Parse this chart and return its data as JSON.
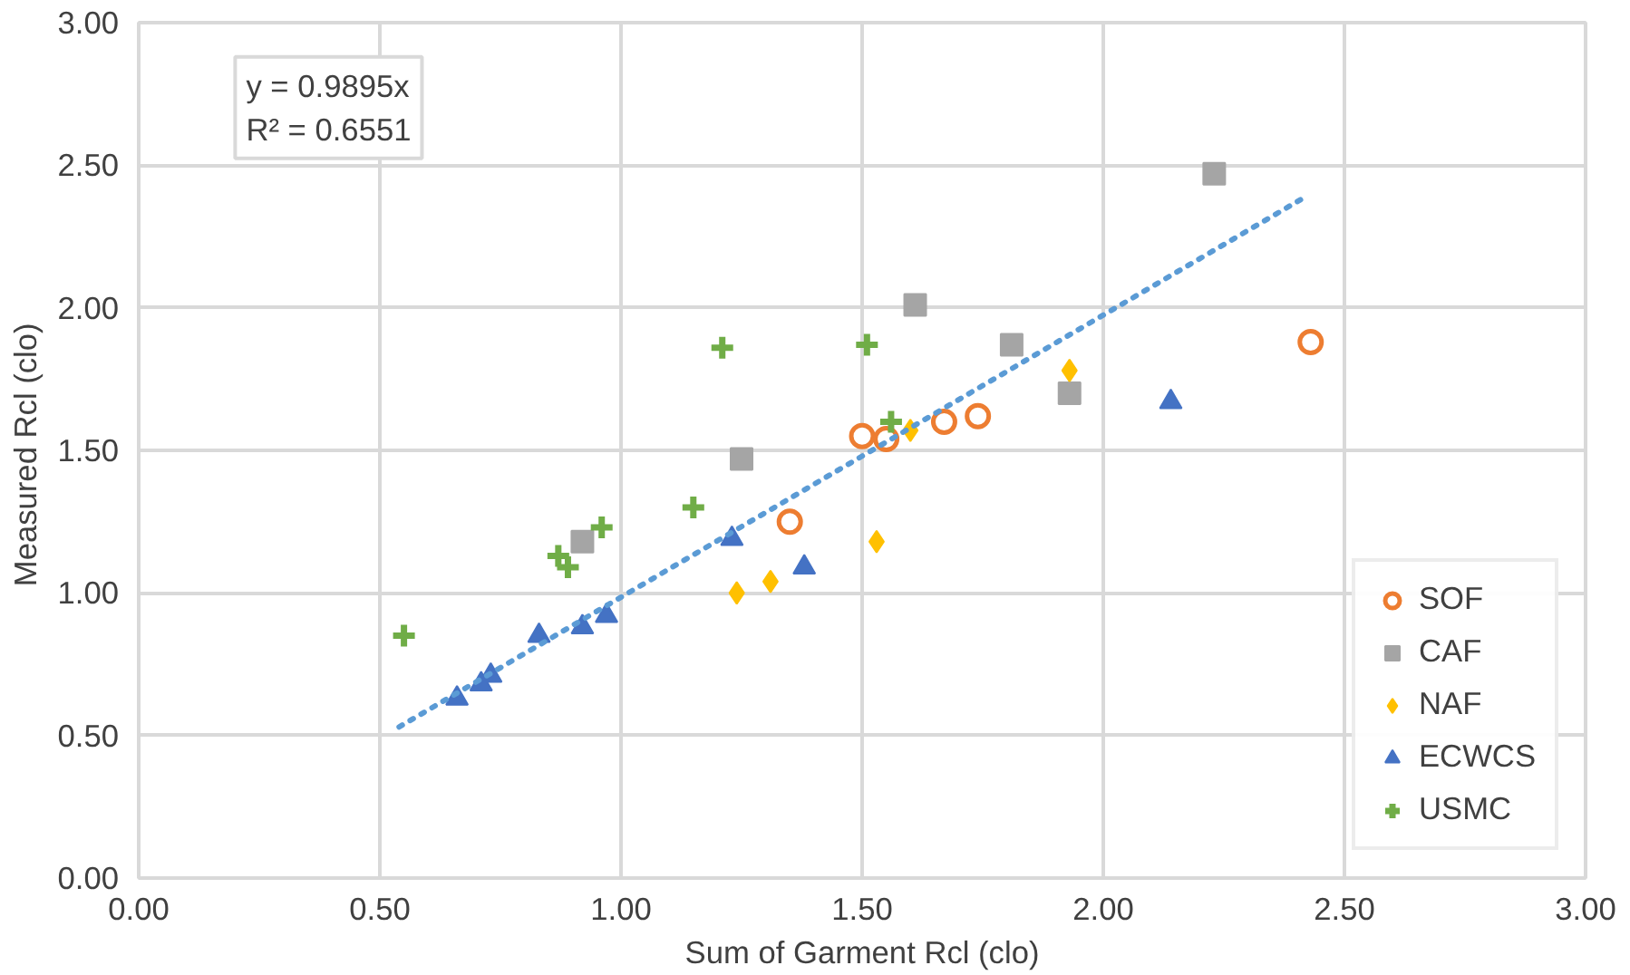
{
  "chart_data": {
    "type": "scatter",
    "xlabel": "Sum of Garment Rcl (clo)",
    "ylabel": "Measured  Rcl (clo)",
    "xlim": [
      0,
      3
    ],
    "ylim": [
      0,
      3
    ],
    "xticks": [
      {
        "value": 0,
        "label": "0.00"
      },
      {
        "value": 0.5,
        "label": "0.50"
      },
      {
        "value": 1,
        "label": "1.00"
      },
      {
        "value": 1.5,
        "label": "1.50"
      },
      {
        "value": 2,
        "label": "2.00"
      },
      {
        "value": 2.5,
        "label": "2.50"
      },
      {
        "value": 3,
        "label": "3.00"
      }
    ],
    "yticks": [
      {
        "value": 0,
        "label": "0.00"
      },
      {
        "value": 0.5,
        "label": "0.50"
      },
      {
        "value": 1,
        "label": "1.00"
      },
      {
        "value": 1.5,
        "label": "1.50"
      },
      {
        "value": 2,
        "label": "2.00"
      },
      {
        "value": 2.5,
        "label": "2.50"
      },
      {
        "value": 3,
        "label": "3.00"
      }
    ],
    "grid": true,
    "legend": "bottom right",
    "annotations": [
      "y = 0.9895x",
      "R² = 0.6551"
    ],
    "series": [
      {
        "name": "SOF",
        "color": "#ed7d31",
        "marker": "circle",
        "x": [
          1.35,
          1.5,
          1.55,
          1.67,
          1.74,
          2.43
        ],
        "values": [
          1.25,
          1.55,
          1.54,
          1.6,
          1.62,
          1.88
        ]
      },
      {
        "name": "CAF",
        "color": "#a5a5a5",
        "marker": "square",
        "x": [
          0.92,
          1.25,
          1.61,
          1.81,
          1.93,
          2.23
        ],
        "values": [
          1.18,
          1.47,
          2.01,
          1.87,
          1.7,
          2.47
        ]
      },
      {
        "name": "NAF",
        "color": "#ffc000",
        "marker": "diamond",
        "x": [
          1.24,
          1.31,
          1.53,
          1.6,
          1.93
        ],
        "values": [
          1.0,
          1.04,
          1.18,
          1.57,
          1.78
        ]
      },
      {
        "name": "ECWCS",
        "color": "#4472c4",
        "marker": "triangle",
        "x": [
          0.66,
          0.71,
          0.73,
          0.83,
          0.92,
          0.97,
          1.23,
          1.38,
          2.14
        ],
        "values": [
          0.63,
          0.68,
          0.71,
          0.85,
          0.88,
          0.92,
          1.19,
          1.09,
          1.67
        ]
      },
      {
        "name": "USMC",
        "color": "#70ad47",
        "marker": "cross",
        "x": [
          0.55,
          0.87,
          0.89,
          0.96,
          1.15,
          1.21,
          1.51,
          1.56
        ],
        "values": [
          0.85,
          1.13,
          1.09,
          1.23,
          1.3,
          1.86,
          1.87,
          1.6
        ]
      },
      {
        "type": "line",
        "color": "#5b9bd5",
        "line_style": "dotted",
        "marker": "none",
        "x": [
          0.54,
          2.42
        ],
        "values": [
          0.53,
          2.39
        ]
      }
    ]
  }
}
